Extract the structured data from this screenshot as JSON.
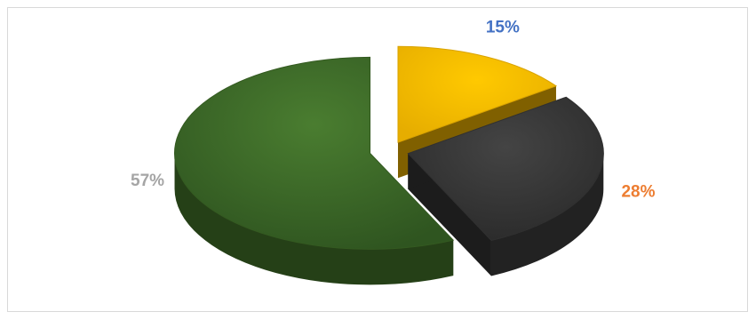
{
  "chart_data": {
    "type": "pie",
    "title": "",
    "style": "3d-exploded",
    "slices": [
      {
        "value": 15,
        "label": "15%",
        "color": "#ffc000",
        "label_color": "#4472c4"
      },
      {
        "value": 28,
        "label": "28%",
        "color": "#383838",
        "label_color": "#ed7d31"
      },
      {
        "value": 57,
        "label": "57%",
        "color": "#3d6a27",
        "label_color": "#a5a5a5"
      }
    ],
    "legend": "none"
  }
}
